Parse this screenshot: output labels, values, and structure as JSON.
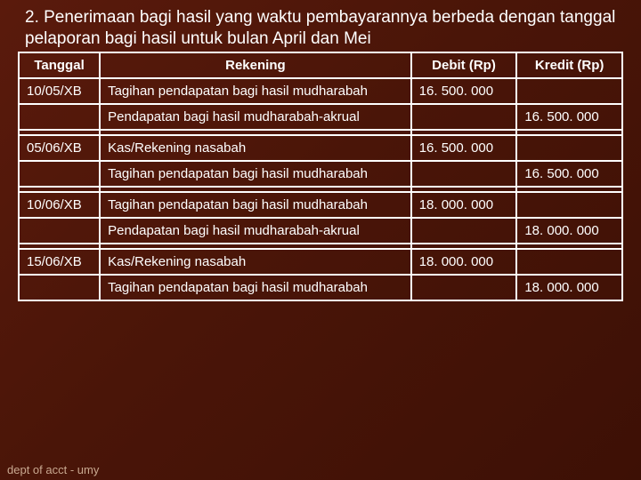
{
  "heading": "2. Penerimaan bagi hasil yang waktu pembayarannya berbeda dengan tanggal pelaporan bagi hasil untuk bulan April dan Mei",
  "columns": {
    "date": "Tanggal",
    "account": "Rekening",
    "debit": "Debit (Rp)",
    "credit": "Kredit (Rp)"
  },
  "rows": [
    {
      "date": "10/05/XB",
      "account": "Tagihan pendapatan bagi hasil mudharabah",
      "debit": "16. 500. 000",
      "credit": ""
    },
    {
      "date": "",
      "account": "Pendapatan bagi hasil mudharabah-akrual",
      "debit": "",
      "credit": "16. 500. 000"
    },
    {
      "spacer": true
    },
    {
      "date": "05/06/XB",
      "account": "Kas/Rekening nasabah",
      "debit": "16. 500. 000",
      "credit": ""
    },
    {
      "date": "",
      "account": "Tagihan pendapatan bagi hasil mudharabah",
      "debit": "",
      "credit": "16. 500. 000"
    },
    {
      "spacer": true
    },
    {
      "date": "10/06/XB",
      "account": "Tagihan pendapatan bagi hasil mudharabah",
      "debit": "18. 000. 000",
      "credit": ""
    },
    {
      "date": "",
      "account": "Pendapatan bagi hasil mudharabah-akrual",
      "debit": "",
      "credit": "18. 000. 000"
    },
    {
      "spacer": true
    },
    {
      "date": "15/06/XB",
      "account": "Kas/Rekening nasabah",
      "debit": "18. 000. 000",
      "credit": ""
    },
    {
      "date": "",
      "account": "Tagihan pendapatan bagi hasil mudharabah",
      "debit": "",
      "credit": "18. 000. 000"
    }
  ],
  "footer": "dept of acct - umy"
}
